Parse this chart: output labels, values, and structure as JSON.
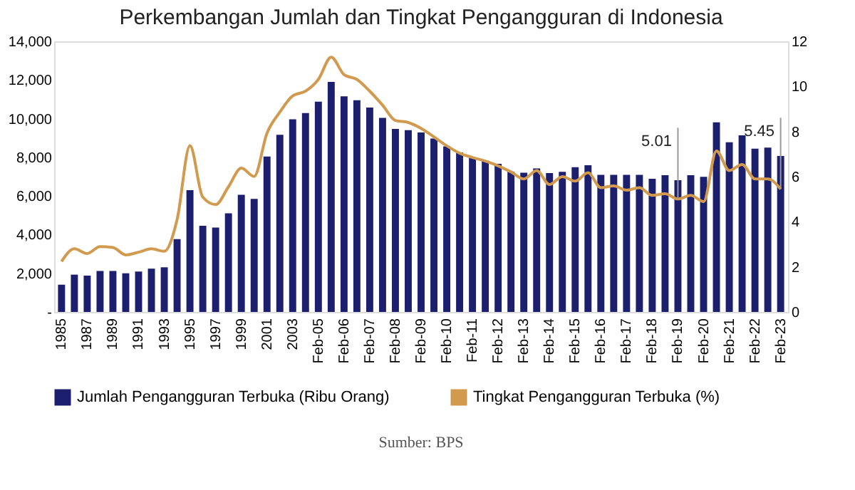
{
  "chart_data": {
    "type": "bar",
    "title": "Perkembangan Jumlah dan Tingkat Pengangguran di Indonesia",
    "categories": [
      "1985",
      null,
      "1987",
      null,
      "1989",
      null,
      "1991",
      null,
      "1993",
      null,
      "1995",
      null,
      "1997",
      null,
      "1999",
      null,
      "2001",
      null,
      "2003",
      null,
      "Feb-05",
      null,
      "Feb-06",
      null,
      "Feb-07",
      null,
      "Feb-08",
      null,
      "Feb-09",
      null,
      "Feb-10",
      null,
      "Feb-11",
      null,
      "Feb-12",
      null,
      "Feb-13",
      null,
      "Feb-14",
      null,
      "Feb-15",
      null,
      "Feb-16",
      null,
      "Feb-17",
      null,
      "Feb-18",
      null,
      "Feb-19",
      null,
      "Feb-20",
      null,
      "Feb-21",
      null,
      "Feb-22",
      null,
      "Feb-23"
    ],
    "series": [
      {
        "name": "Jumlah Pengangguran Terbuka (Ribu Orang)",
        "color": "#1c1f6e",
        "values": [
          1410,
          1930,
          1880,
          2120,
          2120,
          2000,
          2090,
          2240,
          2310,
          3770,
          6300,
          4460,
          4370,
          5100,
          6060,
          5850,
          8040,
          9160,
          9970,
          10290,
          10880,
          11900,
          11150,
          10950,
          10570,
          10040,
          9470,
          9400,
          9280,
          8970,
          8570,
          8250,
          7970,
          7820,
          7660,
          7250,
          7200,
          7420,
          7180,
          7250,
          7490,
          7590,
          7090,
          7090,
          7090,
          7090,
          6890,
          7070,
          6820,
          7070,
          6990,
          9810,
          8780,
          9140,
          8450,
          8500,
          8070
        ]
      },
      {
        "name": "Tingkat Pengangguran Terbuka (%)",
        "type": "line",
        "axis": "y2",
        "color": "#d19a4e",
        "values": [
          2.24,
          2.8,
          2.59,
          2.9,
          2.86,
          2.53,
          2.65,
          2.8,
          2.69,
          4.1,
          7.37,
          5.09,
          4.76,
          5.55,
          6.38,
          6.01,
          7.93,
          8.86,
          9.58,
          9.79,
          10.31,
          11.3,
          10.52,
          10.31,
          9.79,
          9.17,
          8.49,
          8.4,
          8.14,
          7.76,
          7.37,
          7.04,
          6.85,
          6.69,
          6.48,
          6.21,
          5.9,
          6.27,
          5.65,
          6.0,
          5.8,
          6.17,
          5.51,
          5.59,
          5.4,
          5.51,
          5.17,
          5.24,
          5.01,
          5.17,
          4.89,
          7.14,
          6.27,
          6.54,
          5.9,
          5.9,
          5.45
        ],
        "value_labels": [
          null,
          null,
          null,
          null,
          null,
          null,
          null,
          null,
          null,
          null,
          null,
          null,
          null,
          null,
          null,
          null,
          null,
          null,
          null,
          null,
          null,
          null,
          null,
          null,
          null,
          null,
          null,
          null,
          null,
          null,
          null,
          null,
          null,
          null,
          null,
          null,
          null,
          null,
          null,
          null,
          null,
          null,
          null,
          null,
          null,
          null,
          null,
          null,
          "5.01",
          null,
          null,
          null,
          null,
          null,
          null,
          null,
          "5.45"
        ]
      }
    ],
    "ylim": [
      0,
      14000
    ],
    "yticks": [
      {
        "value": 0,
        "label": "-"
      },
      {
        "value": 2000,
        "label": "2,000"
      },
      {
        "value": 4000,
        "label": "4,000"
      },
      {
        "value": 6000,
        "label": "6,000"
      },
      {
        "value": 8000,
        "label": "8,000"
      },
      {
        "value": 10000,
        "label": "10,000"
      },
      {
        "value": 12000,
        "label": "12,000"
      },
      {
        "value": 14000,
        "label": "14,000"
      }
    ],
    "y2lim": [
      0,
      12
    ],
    "y2ticks": [
      0,
      2,
      4,
      6,
      8,
      10,
      12
    ],
    "annotations": [
      "Sumber: BPS"
    ],
    "legend": "bottom",
    "grid": false,
    "marker": "none",
    "line_style": "solid"
  }
}
